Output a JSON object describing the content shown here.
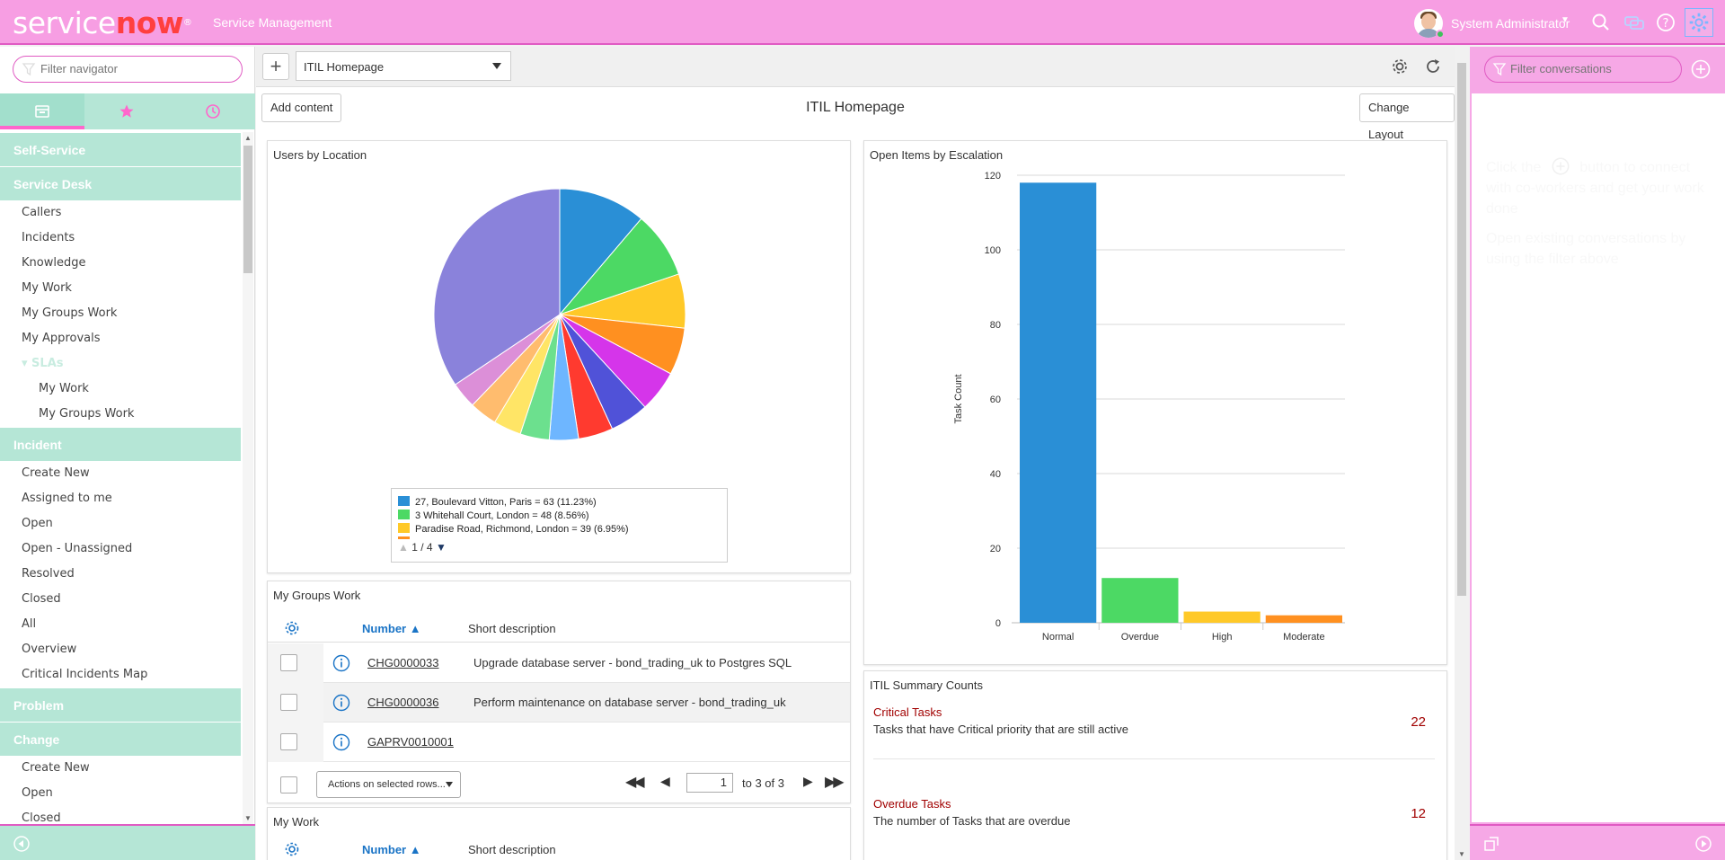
{
  "header": {
    "logo_service": "service",
    "logo_now": "now",
    "logo_reg": "®",
    "app_title": "Service Management",
    "user_name": "System Administrator",
    "colors": {
      "header_bg": "#f79ee3",
      "accent": "#e05bc3"
    }
  },
  "nav": {
    "filter_placeholder": "Filter navigator",
    "tabs": [
      {
        "name": "all-apps-icon"
      },
      {
        "name": "star-icon"
      },
      {
        "name": "history-icon"
      }
    ],
    "items": [
      {
        "label": "Self-Service",
        "kind": "section"
      },
      {
        "label": "Service Desk",
        "kind": "section"
      },
      {
        "label": "Callers",
        "kind": "item"
      },
      {
        "label": "Incidents",
        "kind": "item"
      },
      {
        "label": "Knowledge",
        "kind": "item"
      },
      {
        "label": "My Work",
        "kind": "item"
      },
      {
        "label": "My Groups Work",
        "kind": "item"
      },
      {
        "label": "My Approvals",
        "kind": "item"
      },
      {
        "label": "▾ SLAs",
        "kind": "group"
      },
      {
        "label": "My Work",
        "kind": "sub"
      },
      {
        "label": "My Groups Work",
        "kind": "sub"
      },
      {
        "label": "Incident",
        "kind": "section"
      },
      {
        "label": "Create New",
        "kind": "item"
      },
      {
        "label": "Assigned to me",
        "kind": "item"
      },
      {
        "label": "Open",
        "kind": "item"
      },
      {
        "label": "Open - Unassigned",
        "kind": "item"
      },
      {
        "label": "Resolved",
        "kind": "item"
      },
      {
        "label": "Closed",
        "kind": "item"
      },
      {
        "label": "All",
        "kind": "item"
      },
      {
        "label": "Overview",
        "kind": "item"
      },
      {
        "label": "Critical Incidents Map",
        "kind": "item"
      },
      {
        "label": "Problem",
        "kind": "section"
      },
      {
        "label": "Change",
        "kind": "section"
      },
      {
        "label": "Create New",
        "kind": "item"
      },
      {
        "label": "Open",
        "kind": "item"
      },
      {
        "label": "Closed",
        "kind": "item"
      }
    ]
  },
  "toolbar": {
    "page_select_value": "ITIL Homepage"
  },
  "content": {
    "add_content_label": "Add content",
    "page_heading": "ITIL Homepage",
    "change_layout_label": "Change Layout"
  },
  "widgets": {
    "users_by_location": {
      "title": "Users by Location",
      "legend": [
        {
          "label": "27, Boulevard Vitton, Paris = 63 (11.23%)",
          "color": "#2a8fd6"
        },
        {
          "label": "3 Whitehall Court, London = 48 (8.56%)",
          "color": "#4cd964"
        },
        {
          "label": "Paradise Road, Richmond, London = 39 (6.95%)",
          "color": "#ffc928"
        }
      ],
      "legend_page": "1 / 4"
    },
    "open_items": {
      "title": "Open Items by Escalation"
    },
    "my_groups_work": {
      "title": "My Groups Work",
      "col_number": "Number",
      "col_desc": "Short description",
      "rows": [
        {
          "number": "CHG0000033",
          "desc": "Upgrade database server - bond_trading_uk to Postgres SQL"
        },
        {
          "number": "CHG0000036",
          "desc": "Perform maintenance on database server - bond_trading_uk"
        },
        {
          "number": "GAPRV0010001",
          "desc": ""
        }
      ],
      "actions_label": "Actions on selected rows...",
      "page_value": "1",
      "page_range": "to 3 of 3"
    },
    "my_work": {
      "title": "My Work",
      "col_number": "Number",
      "col_desc": "Short description"
    },
    "itil_summary": {
      "title": "ITIL Summary Counts",
      "items": [
        {
          "title": "Critical Tasks",
          "desc": "Tasks that have Critical priority that are still active",
          "count": "22"
        },
        {
          "title": "Overdue Tasks",
          "desc": "The number of Tasks that are overdue",
          "count": "12"
        }
      ]
    }
  },
  "connect": {
    "filter_placeholder": "Filter conversations",
    "msg_before": "Click the",
    "msg_after": "button to connect with co-workers and get your work done",
    "msg_2": "Open existing conversations by using the filter above"
  },
  "chart_data": [
    {
      "type": "pie",
      "title": "Users by Location",
      "slices": [
        {
          "label": "27, Boulevard Vitton, Paris",
          "value": 63,
          "percent": 11.23,
          "color": "#2a8fd6"
        },
        {
          "label": "3 Whitehall Court, London",
          "value": 48,
          "percent": 8.56,
          "color": "#4cd964"
        },
        {
          "label": "Paradise Road, Richmond, London",
          "value": 39,
          "percent": 6.95,
          "color": "#ffc928"
        },
        {
          "label": "",
          "value": 34,
          "percent": 6.06,
          "color": "#ff9020"
        },
        {
          "label": "",
          "value": 30,
          "percent": 5.35,
          "color": "#d535ea"
        },
        {
          "label": "",
          "value": 28,
          "percent": 4.99,
          "color": "#5052d8"
        },
        {
          "label": "",
          "value": 25,
          "percent": 4.46,
          "color": "#ff3a2f"
        },
        {
          "label": "",
          "value": 21,
          "percent": 3.74,
          "color": "#6eb6ff"
        },
        {
          "label": "",
          "value": 21,
          "percent": 3.74,
          "color": "#6ce08e"
        },
        {
          "label": "",
          "value": 20,
          "percent": 3.57,
          "color": "#ffe566"
        },
        {
          "label": "",
          "value": 20,
          "percent": 3.57,
          "color": "#ffbc6e"
        },
        {
          "label": "",
          "value": 19,
          "percent": 3.39,
          "color": "#dc8fd8"
        },
        {
          "label": "",
          "value": 193,
          "percent": 34.39,
          "color": "#8a82db"
        }
      ]
    },
    {
      "type": "bar",
      "title": "Open Items by Escalation",
      "categories": [
        "Normal",
        "Overdue",
        "High",
        "Moderate"
      ],
      "values": [
        118,
        12,
        3,
        2
      ],
      "colors": [
        "#2a8fd6",
        "#4cd964",
        "#ffc928",
        "#ff9020"
      ],
      "ylabel": "Task Count",
      "ylim": [
        0,
        120
      ],
      "yticks": [
        0,
        20,
        40,
        60,
        80,
        100,
        120
      ]
    }
  ]
}
